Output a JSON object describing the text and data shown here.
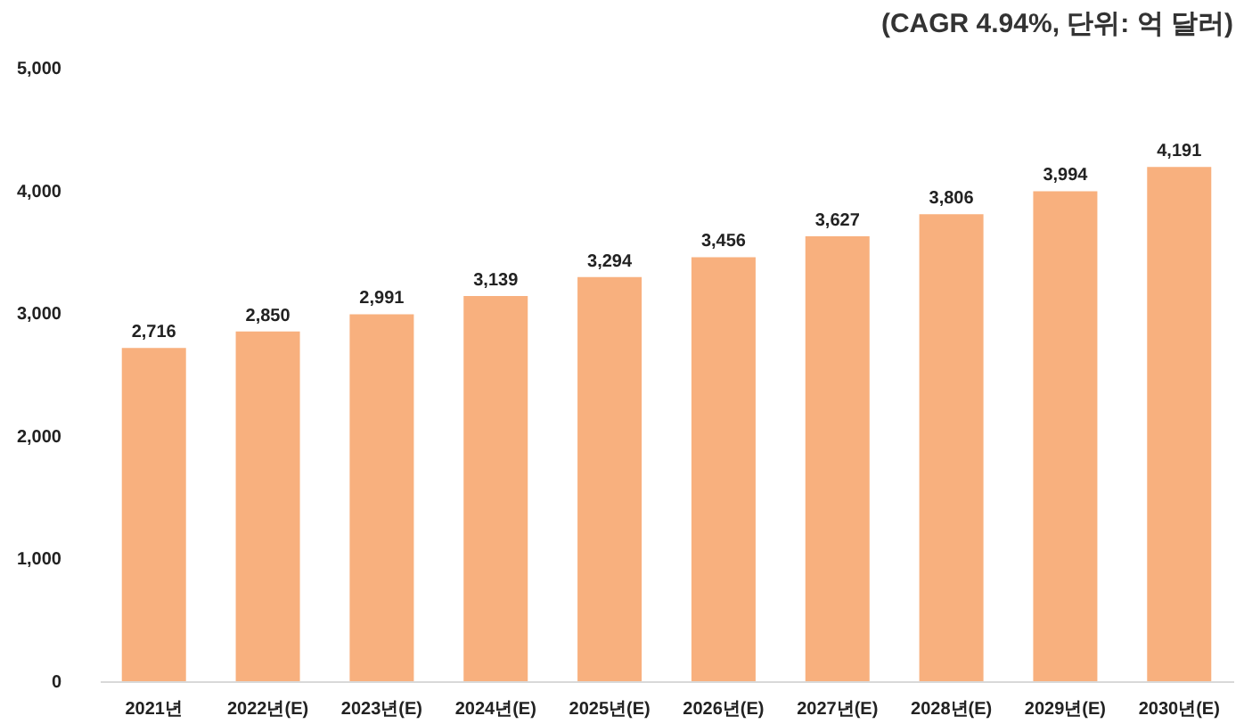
{
  "chart_data": {
    "type": "bar",
    "annotations": [
      "(CAGR 4.94%, 단위: 억 달러)"
    ],
    "categories": [
      "2021년",
      "2022년(E)",
      "2023년(E)",
      "2024년(E)",
      "2025년(E)",
      "2026년(E)",
      "2027년(E)",
      "2028년(E)",
      "2029년(E)",
      "2030년(E)"
    ],
    "values": [
      2716,
      2850,
      2991,
      3139,
      3294,
      3456,
      3627,
      3806,
      3994,
      4191
    ],
    "value_labels": [
      "2,716",
      "2,850",
      "2,991",
      "3,139",
      "3,294",
      "3,456",
      "3,627",
      "3,806",
      "3,994",
      "4,191"
    ],
    "color": "#f8b07e",
    "ylim": [
      0,
      5000
    ],
    "yticks": [
      0,
      {
        "value": 1000,
        "label": "1,000"
      },
      {
        "value": 2000,
        "label": "2,000"
      },
      {
        "value": 3000,
        "label": "3,000"
      },
      {
        "value": 4000,
        "label": "4,000"
      },
      {
        "value": 5000,
        "label": "5,000"
      }
    ],
    "grid": false
  }
}
